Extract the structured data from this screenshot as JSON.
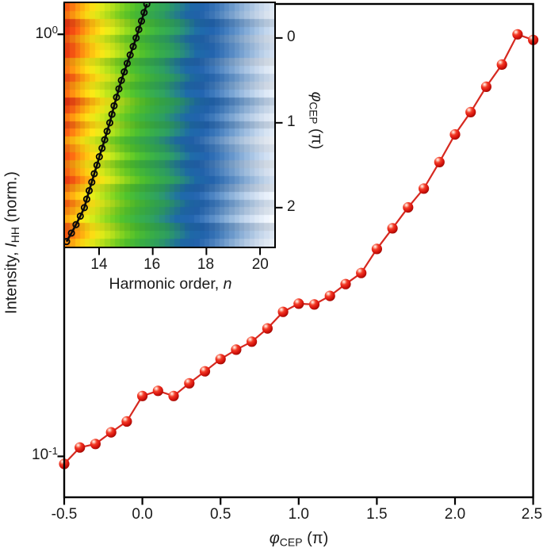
{
  "figure": {
    "background": "#ffffff",
    "frame_color": "#000000",
    "accent_red": "#d62920"
  },
  "main_plot": {
    "x_tick_labels": [
      "-0.5",
      "0.0",
      "0.5",
      "1.0",
      "1.5",
      "2.0",
      "2.5"
    ],
    "y_ticks": [
      {
        "base": "10",
        "exp": "0"
      },
      {
        "base": "10",
        "exp": "-1"
      }
    ],
    "xlabel": {
      "symbol": "φ",
      "sub": "CEP",
      "units": " (π)"
    },
    "ylabel": {
      "prefix": "Intensity, ",
      "symbol": "I",
      "sub": "HH",
      "suffix": " (norm.)"
    }
  },
  "inset": {
    "x_tick_labels": [
      "14",
      "16",
      "18",
      "20"
    ],
    "y_tick_labels": [
      "0",
      "1",
      "2"
    ],
    "xlabel": {
      "prefix": "Harmonic order, ",
      "symbol": "n"
    },
    "ylabel": {
      "symbol": "φ",
      "sub": "CEP",
      "units": " (π)"
    }
  },
  "chart_data": [
    {
      "type": "line",
      "name": "hh-intensity-vs-cep-phase",
      "xlabel": "phi_CEP (pi)",
      "ylabel": "Intensity, I_HH (norm.)",
      "yscale": "log",
      "xlim": [
        -0.5,
        2.5
      ],
      "ylim": [
        0.08,
        1.18
      ],
      "grid": false,
      "line_color": "#d62920",
      "marker": "glossy-red-sphere",
      "x": [
        -0.5,
        -0.4,
        -0.3,
        -0.2,
        -0.1,
        0.0,
        0.1,
        0.2,
        0.3,
        0.4,
        0.5,
        0.6,
        0.7,
        0.8,
        0.9,
        1.0,
        1.1,
        1.2,
        1.3,
        1.4,
        1.5,
        1.6,
        1.7,
        1.8,
        1.9,
        2.0,
        2.1,
        2.2,
        2.3,
        2.4,
        2.5
      ],
      "y": [
        0.096,
        0.105,
        0.107,
        0.114,
        0.121,
        0.139,
        0.143,
        0.139,
        0.149,
        0.159,
        0.17,
        0.179,
        0.187,
        0.201,
        0.22,
        0.23,
        0.229,
        0.24,
        0.256,
        0.272,
        0.31,
        0.347,
        0.389,
        0.431,
        0.498,
        0.579,
        0.654,
        0.751,
        0.848,
        1.0,
        0.97
      ]
    },
    {
      "type": "heatmap",
      "name": "harmonic-spectrum-vs-cep-phase",
      "xlabel": "Harmonic order, n",
      "ylabel": "phi_CEP (pi)",
      "xlim": [
        12.73,
        20.53
      ],
      "ylim": [
        -0.41,
        2.46
      ],
      "x_ticks": [
        14,
        16,
        18,
        20
      ],
      "y_ticks": [
        0,
        1,
        2
      ],
      "band_drift_per_pi": 0.12,
      "row_jitter": 0.24,
      "rows": 31,
      "cols": 42,
      "colormap_stops": [
        [
          12.4,
          "#dc2a10"
        ],
        [
          12.8,
          "#f05a12"
        ],
        [
          13.1,
          "#f78c10"
        ],
        [
          13.45,
          "#fbbc10"
        ],
        [
          13.75,
          "#f5dc14"
        ],
        [
          14.1,
          "#d8e418"
        ],
        [
          14.5,
          "#a8d81c"
        ],
        [
          14.9,
          "#74ca20"
        ],
        [
          15.35,
          "#4cba2c"
        ],
        [
          15.9,
          "#37aa44"
        ],
        [
          16.5,
          "#2c9a5e"
        ],
        [
          16.95,
          "#257f85"
        ],
        [
          17.35,
          "#1d66a2"
        ],
        [
          17.9,
          "#2160a8"
        ],
        [
          18.35,
          "#3b74b4"
        ],
        [
          18.85,
          "#6391c4"
        ],
        [
          19.35,
          "#8fb0d4"
        ],
        [
          19.85,
          "#b7cbe2"
        ],
        [
          20.35,
          "#d5dfec"
        ],
        [
          20.9,
          "#ecf1f6"
        ]
      ],
      "trace": {
        "label": "peak-harmonic-trace",
        "color": "#0a0a0a",
        "phi": [
          -0.4,
          -0.3,
          -0.2,
          -0.1,
          0.0,
          0.1,
          0.2,
          0.3,
          0.4,
          0.5,
          0.6,
          0.7,
          0.8,
          0.9,
          1.0,
          1.1,
          1.2,
          1.3,
          1.4,
          1.5,
          1.6,
          1.7,
          1.8,
          1.9,
          2.0,
          2.1,
          2.2,
          2.3,
          2.4
        ],
        "n": [
          15.78,
          15.68,
          15.58,
          15.48,
          15.38,
          15.27,
          15.16,
          15.05,
          14.94,
          14.83,
          14.74,
          14.65,
          14.56,
          14.48,
          14.4,
          14.3,
          14.21,
          14.11,
          14.01,
          13.92,
          13.82,
          13.73,
          13.63,
          13.54,
          13.45,
          13.3,
          13.14,
          12.97,
          12.79
        ]
      }
    }
  ]
}
